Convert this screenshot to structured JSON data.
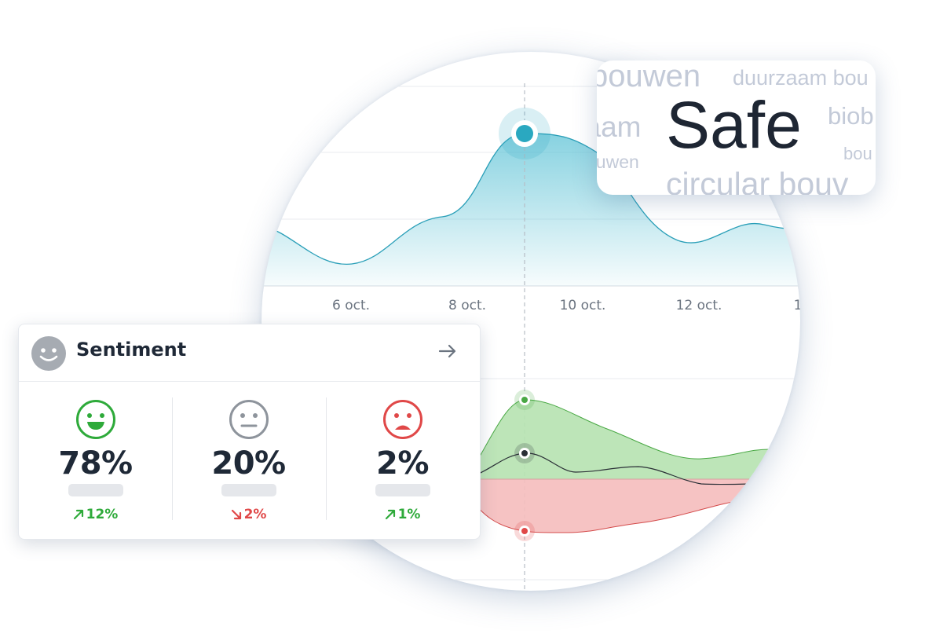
{
  "colors": {
    "accent": "#2aa8c0",
    "positive": "#2eaa3a",
    "negative": "#e04848",
    "neutral": "#8e949c",
    "cloud_word": "#c3cad8",
    "cloud_main": "#1e2633"
  },
  "timeline": {
    "dates": [
      "6 oct.",
      "8 oct.",
      "10 oct.",
      "12 oct.",
      "1"
    ]
  },
  "word_cloud": {
    "main_word": "Safe",
    "words": [
      "bouwen",
      "duurzaam bou",
      "zaam",
      "biob",
      "ouwen",
      "bou",
      "circular bouv"
    ]
  },
  "sentiment": {
    "title": "Sentiment",
    "icon": "smiley-icon",
    "arrow_icon": "arrow-right-icon",
    "items": [
      {
        "face": "happy-face-icon",
        "percent": "78%",
        "change": "12%",
        "trend": "up"
      },
      {
        "face": "neutral-face-icon",
        "percent": "20%",
        "change": "2%",
        "trend": "down"
      },
      {
        "face": "sad-face-icon",
        "percent": "2%",
        "change": "1%",
        "trend": "up"
      }
    ]
  }
}
